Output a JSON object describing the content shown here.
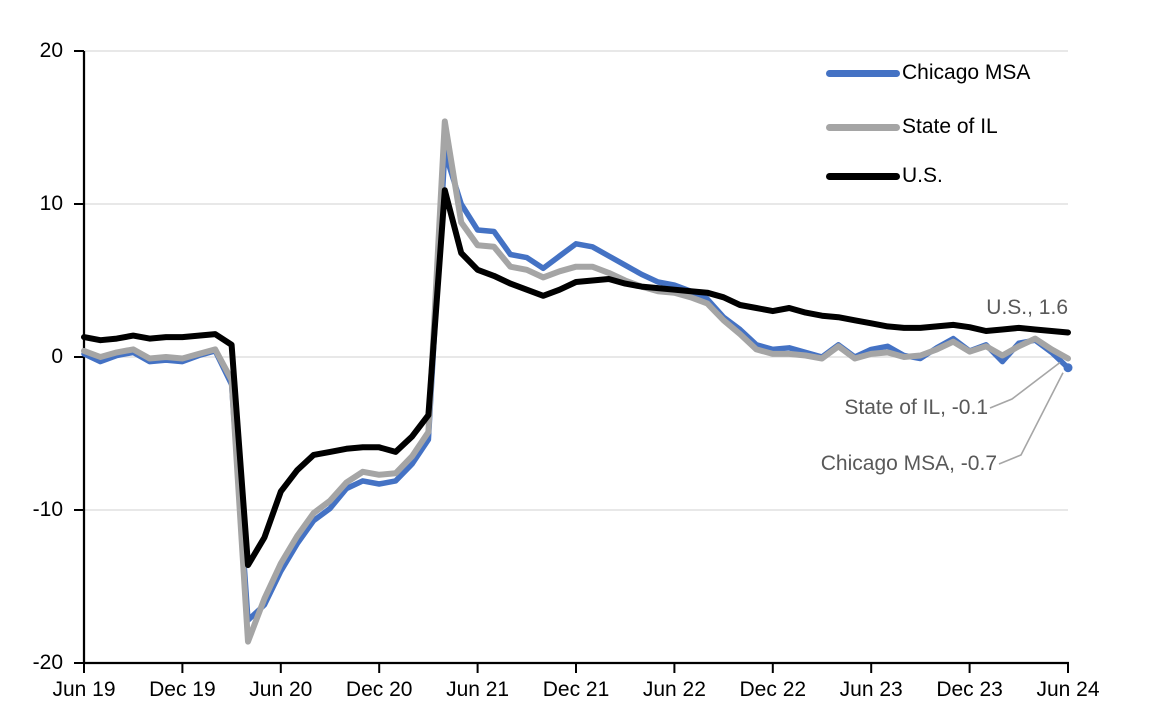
{
  "chart_data": {
    "type": "line",
    "x_tick_labels": [
      "Jun 19",
      "Dec 19",
      "Jun 20",
      "Dec 20",
      "Jun 21",
      "Dec 21",
      "Jun 22",
      "Dec 22",
      "Jun 23",
      "Dec 23",
      "Jun 24"
    ],
    "y_tick_labels": [
      "20",
      "10",
      "0",
      "-10",
      "-20"
    ],
    "y_ticks": [
      20,
      10,
      0,
      -10,
      -20
    ],
    "ylim": [
      -20,
      20
    ],
    "x_months_span": 60,
    "grid": "horizontal-only",
    "gridline_color": "#D9D9D9",
    "axis_color": "#000000",
    "legend_position": "top-right-inside",
    "series": [
      {
        "name": "Chicago MSA",
        "color": "#4472C4",
        "stroke_width": 5.5,
        "end_marker": true,
        "values": [
          0.2,
          -0.3,
          0.1,
          0.3,
          -0.3,
          -0.2,
          -0.3,
          0.1,
          0.4,
          -1.8,
          -17.2,
          -16.2,
          -14.0,
          -12.2,
          -10.7,
          -9.9,
          -8.6,
          -8.1,
          -8.3,
          -8.1,
          -7.0,
          -5.4,
          13.4,
          10.0,
          8.3,
          8.2,
          6.7,
          6.5,
          5.8,
          6.6,
          7.4,
          7.2,
          6.6,
          6.0,
          5.4,
          4.9,
          4.7,
          4.3,
          3.8,
          2.6,
          1.8,
          0.8,
          0.5,
          0.6,
          0.3,
          0.0,
          0.8,
          0.0,
          0.5,
          0.7,
          0.1,
          -0.1,
          0.6,
          1.2,
          0.4,
          0.8,
          -0.3,
          0.9,
          1.1,
          0.3,
          -0.7
        ]
      },
      {
        "name": "State of IL",
        "color": "#A5A5A5",
        "stroke_width": 6,
        "end_marker": false,
        "values": [
          0.4,
          0.0,
          0.3,
          0.5,
          -0.1,
          0.0,
          -0.1,
          0.2,
          0.5,
          -1.5,
          -18.6,
          -15.8,
          -13.5,
          -11.7,
          -10.2,
          -9.4,
          -8.2,
          -7.5,
          -7.7,
          -7.6,
          -6.5,
          -4.9,
          15.4,
          8.8,
          7.3,
          7.2,
          5.9,
          5.7,
          5.2,
          5.6,
          5.9,
          5.9,
          5.5,
          5.0,
          4.6,
          4.3,
          4.2,
          3.9,
          3.5,
          2.4,
          1.5,
          0.5,
          0.2,
          0.2,
          0.1,
          -0.1,
          0.7,
          -0.1,
          0.2,
          0.3,
          0.0,
          0.1,
          0.5,
          1.0,
          0.35,
          0.7,
          0.1,
          0.7,
          1.2,
          0.5,
          -0.1
        ]
      },
      {
        "name": "U.S.",
        "color": "#000000",
        "stroke_width": 6,
        "end_marker": false,
        "values": [
          1.3,
          1.1,
          1.2,
          1.4,
          1.2,
          1.3,
          1.3,
          1.4,
          1.5,
          0.8,
          -13.6,
          -11.8,
          -8.8,
          -7.4,
          -6.4,
          -6.2,
          -6.0,
          -5.9,
          -5.9,
          -6.2,
          -5.2,
          -3.8,
          10.9,
          6.8,
          5.7,
          5.3,
          4.8,
          4.4,
          4.0,
          4.4,
          4.9,
          5.0,
          5.1,
          4.8,
          4.6,
          4.5,
          4.4,
          4.3,
          4.2,
          3.9,
          3.4,
          3.2,
          3.0,
          3.2,
          2.9,
          2.7,
          2.6,
          2.4,
          2.2,
          2.0,
          1.9,
          1.9,
          2.0,
          2.1,
          1.95,
          1.7,
          1.8,
          1.9,
          1.8,
          1.7,
          1.6
        ]
      }
    ],
    "annotations": [
      {
        "text": "U.S., 1.6",
        "series": "U.S.",
        "value": 1.6
      },
      {
        "text": "State of IL, -0.1",
        "series": "State of IL",
        "value": -0.1
      },
      {
        "text": "Chicago MSA, -0.7",
        "series": "Chicago MSA",
        "value": -0.7
      }
    ]
  },
  "colors": {
    "annotation_text": "#595959",
    "leader_line": "#A6A6A6",
    "background": "#FFFFFF"
  }
}
